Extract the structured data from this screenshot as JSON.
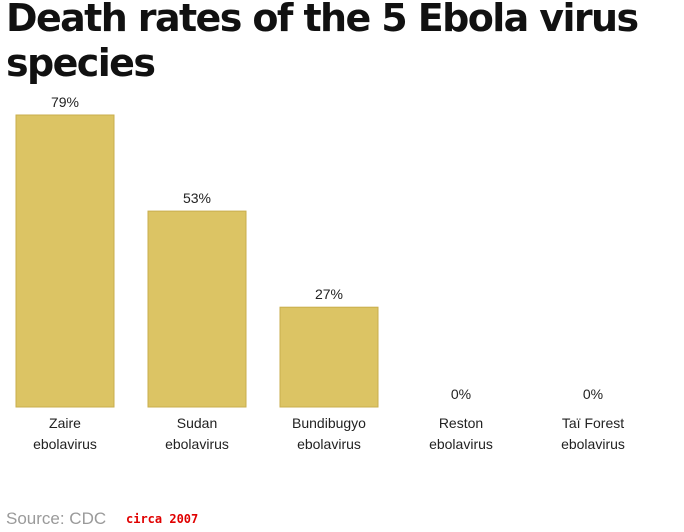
{
  "chart_data": {
    "type": "bar",
    "title": "Death rates of the 5 Ebola virus species",
    "categories": [
      [
        "Zaire",
        "ebolavirus"
      ],
      [
        "Sudan",
        "ebolavirus"
      ],
      [
        "Bundibugyo",
        "ebolavirus"
      ],
      [
        "Reston",
        "ebolavirus"
      ],
      [
        "Taï Forest",
        "ebolavirus"
      ]
    ],
    "values": [
      79,
      53,
      27,
      0,
      0
    ],
    "data_labels": [
      "79%",
      "53%",
      "27%",
      "0%",
      "0%"
    ],
    "unit": "%",
    "ylim": [
      0,
      79
    ],
    "grid": false,
    "legend": "none",
    "bar_color": "#dcc464",
    "bar_edge_color": "#c9ae4c"
  },
  "footer": {
    "source": "Source: CDC",
    "note": "circa 2007"
  }
}
